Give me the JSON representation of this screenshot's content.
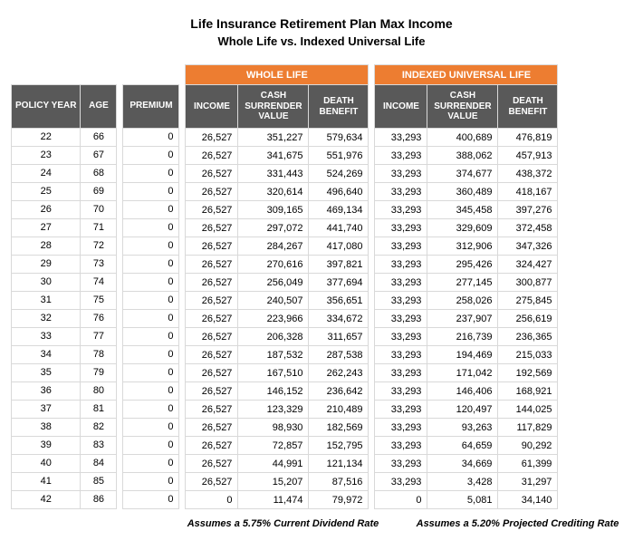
{
  "title": "Life Insurance Retirement Plan Max Income",
  "subtitle": "Whole Life vs. Indexed Universal Life",
  "colors": {
    "accent": "#ed7d31",
    "header_bg": "#595959",
    "header_text": "#ffffff",
    "border": "#d9d9d9",
    "background": "#ffffff",
    "text": "#000000"
  },
  "columns": {
    "policy_year": "POLICY YEAR",
    "age": "AGE",
    "premium": "PREMIUM",
    "income": "INCOME",
    "csv_line1": "CASH",
    "csv_line2": "SURRENDER",
    "csv_line3": "VALUE",
    "db_line1": "DEATH",
    "db_line2": "BENEFIT"
  },
  "group_headers": {
    "whole_life": "WHOLE LIFE",
    "iul": "INDEXED UNIVERSAL LIFE"
  },
  "footnotes": {
    "whole_life": "Assumes a 5.75% Current Dividend Rate",
    "iul": "Assumes a 5.20% Projected Crediting Rate"
  },
  "rows": [
    {
      "py": "22",
      "age": "66",
      "prem": "0",
      "wl_inc": "26,527",
      "wl_csv": "351,227",
      "wl_db": "579,634",
      "iul_inc": "33,293",
      "iul_csv": "400,689",
      "iul_db": "476,819"
    },
    {
      "py": "23",
      "age": "67",
      "prem": "0",
      "wl_inc": "26,527",
      "wl_csv": "341,675",
      "wl_db": "551,976",
      "iul_inc": "33,293",
      "iul_csv": "388,062",
      "iul_db": "457,913"
    },
    {
      "py": "24",
      "age": "68",
      "prem": "0",
      "wl_inc": "26,527",
      "wl_csv": "331,443",
      "wl_db": "524,269",
      "iul_inc": "33,293",
      "iul_csv": "374,677",
      "iul_db": "438,372"
    },
    {
      "py": "25",
      "age": "69",
      "prem": "0",
      "wl_inc": "26,527",
      "wl_csv": "320,614",
      "wl_db": "496,640",
      "iul_inc": "33,293",
      "iul_csv": "360,489",
      "iul_db": "418,167"
    },
    {
      "py": "26",
      "age": "70",
      "prem": "0",
      "wl_inc": "26,527",
      "wl_csv": "309,165",
      "wl_db": "469,134",
      "iul_inc": "33,293",
      "iul_csv": "345,458",
      "iul_db": "397,276"
    },
    {
      "py": "27",
      "age": "71",
      "prem": "0",
      "wl_inc": "26,527",
      "wl_csv": "297,072",
      "wl_db": "441,740",
      "iul_inc": "33,293",
      "iul_csv": "329,609",
      "iul_db": "372,458"
    },
    {
      "py": "28",
      "age": "72",
      "prem": "0",
      "wl_inc": "26,527",
      "wl_csv": "284,267",
      "wl_db": "417,080",
      "iul_inc": "33,293",
      "iul_csv": "312,906",
      "iul_db": "347,326"
    },
    {
      "py": "29",
      "age": "73",
      "prem": "0",
      "wl_inc": "26,527",
      "wl_csv": "270,616",
      "wl_db": "397,821",
      "iul_inc": "33,293",
      "iul_csv": "295,426",
      "iul_db": "324,427"
    },
    {
      "py": "30",
      "age": "74",
      "prem": "0",
      "wl_inc": "26,527",
      "wl_csv": "256,049",
      "wl_db": "377,694",
      "iul_inc": "33,293",
      "iul_csv": "277,145",
      "iul_db": "300,877"
    },
    {
      "py": "31",
      "age": "75",
      "prem": "0",
      "wl_inc": "26,527",
      "wl_csv": "240,507",
      "wl_db": "356,651",
      "iul_inc": "33,293",
      "iul_csv": "258,026",
      "iul_db": "275,845"
    },
    {
      "py": "32",
      "age": "76",
      "prem": "0",
      "wl_inc": "26,527",
      "wl_csv": "223,966",
      "wl_db": "334,672",
      "iul_inc": "33,293",
      "iul_csv": "237,907",
      "iul_db": "256,619"
    },
    {
      "py": "33",
      "age": "77",
      "prem": "0",
      "wl_inc": "26,527",
      "wl_csv": "206,328",
      "wl_db": "311,657",
      "iul_inc": "33,293",
      "iul_csv": "216,739",
      "iul_db": "236,365"
    },
    {
      "py": "34",
      "age": "78",
      "prem": "0",
      "wl_inc": "26,527",
      "wl_csv": "187,532",
      "wl_db": "287,538",
      "iul_inc": "33,293",
      "iul_csv": "194,469",
      "iul_db": "215,033"
    },
    {
      "py": "35",
      "age": "79",
      "prem": "0",
      "wl_inc": "26,527",
      "wl_csv": "167,510",
      "wl_db": "262,243",
      "iul_inc": "33,293",
      "iul_csv": "171,042",
      "iul_db": "192,569"
    },
    {
      "py": "36",
      "age": "80",
      "prem": "0",
      "wl_inc": "26,527",
      "wl_csv": "146,152",
      "wl_db": "236,642",
      "iul_inc": "33,293",
      "iul_csv": "146,406",
      "iul_db": "168,921"
    },
    {
      "py": "37",
      "age": "81",
      "prem": "0",
      "wl_inc": "26,527",
      "wl_csv": "123,329",
      "wl_db": "210,489",
      "iul_inc": "33,293",
      "iul_csv": "120,497",
      "iul_db": "144,025"
    },
    {
      "py": "38",
      "age": "82",
      "prem": "0",
      "wl_inc": "26,527",
      "wl_csv": "98,930",
      "wl_db": "182,569",
      "iul_inc": "33,293",
      "iul_csv": "93,263",
      "iul_db": "117,829"
    },
    {
      "py": "39",
      "age": "83",
      "prem": "0",
      "wl_inc": "26,527",
      "wl_csv": "72,857",
      "wl_db": "152,795",
      "iul_inc": "33,293",
      "iul_csv": "64,659",
      "iul_db": "90,292"
    },
    {
      "py": "40",
      "age": "84",
      "prem": "0",
      "wl_inc": "26,527",
      "wl_csv": "44,991",
      "wl_db": "121,134",
      "iul_inc": "33,293",
      "iul_csv": "34,669",
      "iul_db": "61,399"
    },
    {
      "py": "41",
      "age": "85",
      "prem": "0",
      "wl_inc": "26,527",
      "wl_csv": "15,207",
      "wl_db": "87,516",
      "iul_inc": "33,293",
      "iul_csv": "3,428",
      "iul_db": "31,297"
    },
    {
      "py": "42",
      "age": "86",
      "prem": "0",
      "wl_inc": "0",
      "wl_csv": "11,474",
      "wl_db": "79,972",
      "iul_inc": "0",
      "iul_csv": "5,081",
      "iul_db": "34,140"
    }
  ]
}
